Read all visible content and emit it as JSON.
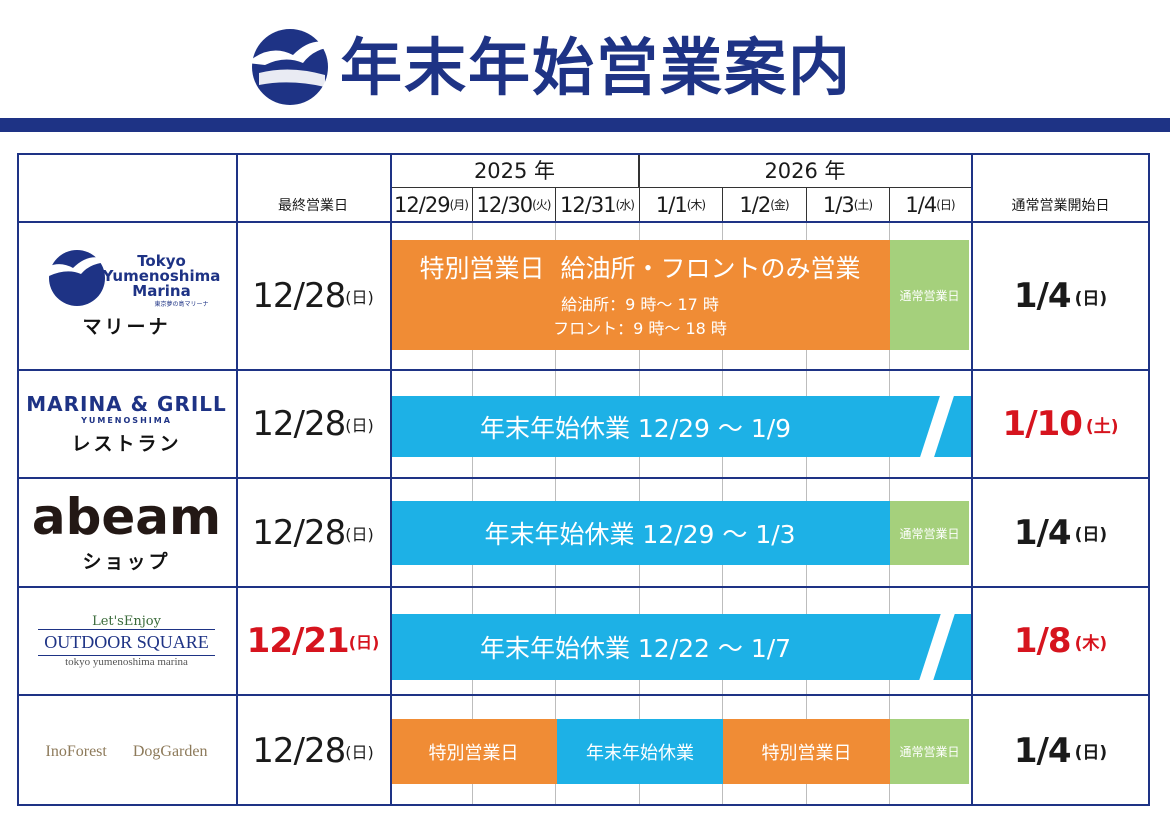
{
  "header": {
    "title": "年末年始営業案内"
  },
  "table": {
    "years": [
      "2025 年",
      "2026 年"
    ],
    "columns": {
      "last_day": "最終営業日",
      "restart": "通常営業開始日"
    },
    "dates": [
      {
        "date": "12/29",
        "weekday": "(月)"
      },
      {
        "date": "12/30",
        "weekday": "(火)"
      },
      {
        "date": "12/31",
        "weekday": "(水)"
      },
      {
        "date": "1/1",
        "weekday": "(木)"
      },
      {
        "date": "1/2",
        "weekday": "(金)"
      },
      {
        "date": "1/3",
        "weekday": "(土)"
      },
      {
        "date": "1/4",
        "weekday": "(日)"
      }
    ],
    "rows": [
      {
        "logo": [
          "Tokyo",
          "Yumenoshima",
          "Marina",
          "東京夢の島マリーナ"
        ],
        "name": "マリーナ",
        "last_day": {
          "date": "12/28",
          "weekday": "(日)"
        },
        "bars": [
          {
            "label": "特別営業日  給油所・フロントのみ営業",
            "notes": [
              "給油所：9 時～ 17 時",
              "フロント：9 時～ 18 時"
            ]
          },
          {
            "label": "通常営業日"
          }
        ],
        "restart": {
          "date": "1/4",
          "weekday": "(日)"
        }
      },
      {
        "logo": [
          "MARINA & GRILL",
          "YUMENOSHIMA"
        ],
        "name": "レストラン",
        "last_day": {
          "date": "12/28",
          "weekday": "(日)"
        },
        "bars": [
          {
            "label": "年末年始休業 12/29 ～ 1/9"
          }
        ],
        "restart": {
          "date": "1/10",
          "weekday": "(土)"
        }
      },
      {
        "logo": [
          "abeam"
        ],
        "name": "ショップ",
        "last_day": {
          "date": "12/28",
          "weekday": "(日)"
        },
        "bars": [
          {
            "label": "年末年始休業 12/29 ～ 1/3"
          },
          {
            "label": "通常営業日"
          }
        ],
        "restart": {
          "date": "1/4",
          "weekday": "(日)"
        }
      },
      {
        "logo": [
          "Let'sEnjoy",
          "OUTDOOR SQUARE",
          "tokyo  yumenoshima  marina"
        ],
        "last_day": {
          "date": "12/21",
          "weekday": "(日)"
        },
        "bars": [
          {
            "label": "年末年始休業 12/22 ～ 1/7"
          }
        ],
        "restart": {
          "date": "1/8",
          "weekday": "(木)"
        }
      },
      {
        "logo": [
          "InoForest",
          "DogGarden"
        ],
        "last_day": {
          "date": "12/28",
          "weekday": "(日)"
        },
        "bars": [
          {
            "label": "特別営業日"
          },
          {
            "label": "年末年始休業"
          },
          {
            "label": "特別営業日"
          },
          {
            "label": "通常営業日"
          }
        ],
        "restart": {
          "date": "1/4",
          "weekday": "(日)"
        }
      }
    ]
  }
}
